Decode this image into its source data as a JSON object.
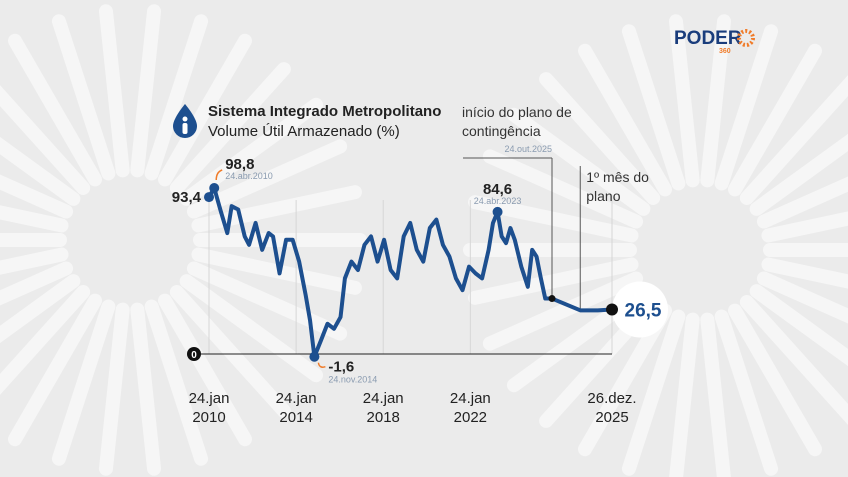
{
  "chart_data": {
    "type": "line",
    "title": "Sistema Integrado Metropolitano",
    "subtitle": "Volume Útil Armazenado (%)",
    "brand": {
      "name": "PODER",
      "number": "360"
    },
    "annotations": [
      {
        "text": "início do plano de contingência",
        "at": 58
      },
      {
        "text": "1º mês do plano",
        "at": 59
      }
    ],
    "xlim": [
      2010.06,
      2025.98
    ],
    "xticks": [
      {
        "value": 2010.06,
        "label": "24.jan 2010"
      },
      {
        "value": 2014.06,
        "label": "24.jan 2014"
      },
      {
        "value": 2018.06,
        "label": "24.jan 2018"
      },
      {
        "value": 2022.06,
        "label": "24.jan 2022"
      },
      {
        "value": 2025.98,
        "label": "26.dez. 2025"
      }
    ],
    "ylim": [
      -5,
      100
    ],
    "yticks": [
      0
    ],
    "series": [
      {
        "name": "Volume Útil Armazenado",
        "color": "#1d4f8f",
        "x": [
          2010.06,
          2010.3,
          2010.6,
          2010.9,
          2011.1,
          2011.4,
          2011.7,
          2011.9,
          2012.2,
          2012.5,
          2012.8,
          2013.0,
          2013.3,
          2013.6,
          2013.9,
          2014.2,
          2014.5,
          2014.7,
          2014.9,
          2015.2,
          2015.5,
          2015.8,
          2016.1,
          2016.3,
          2016.6,
          2016.9,
          2017.2,
          2017.5,
          2017.8,
          2018.1,
          2018.4,
          2018.7,
          2019.0,
          2019.3,
          2019.6,
          2019.9,
          2020.2,
          2020.5,
          2020.8,
          2021.1,
          2021.4,
          2021.7,
          2022.0,
          2022.3,
          2022.6,
          2022.9,
          2023.1,
          2023.31,
          2023.5,
          2023.7,
          2023.9,
          2024.1,
          2024.4,
          2024.7,
          2024.9,
          2025.1,
          2025.3,
          2025.5,
          2025.81,
          2025.89,
          2025.94,
          2025.98
        ],
        "values": [
          93.4,
          98.8,
          85,
          72,
          88,
          86,
          70,
          65,
          78,
          62,
          72,
          70,
          48,
          68,
          68,
          55,
          35,
          20,
          -1.6,
          8,
          18,
          15,
          22,
          45,
          55,
          50,
          65,
          70,
          55,
          68,
          50,
          45,
          70,
          78,
          62,
          55,
          75,
          80,
          65,
          58,
          45,
          38,
          52,
          48,
          45,
          62,
          78,
          84.6,
          70,
          66,
          75,
          68,
          52,
          40,
          62,
          58,
          45,
          33,
          33,
          26,
          26,
          26.5
        ],
        "value_labels": [
          "93,4",
          "98,8",
          null,
          null,
          null,
          null,
          null,
          null,
          null,
          null,
          null,
          null,
          null,
          null,
          null,
          null,
          null,
          null,
          "-1,6",
          null,
          null,
          null,
          null,
          null,
          null,
          null,
          null,
          null,
          null,
          null,
          null,
          null,
          null,
          null,
          null,
          null,
          null,
          null,
          null,
          null,
          null,
          null,
          null,
          null,
          null,
          null,
          null,
          "84,6",
          null,
          null,
          null,
          null,
          null,
          null,
          null,
          null,
          null,
          null,
          null,
          null,
          null,
          "26,5"
        ],
        "date_labels": [
          null,
          "24.abr.2010",
          null,
          null,
          null,
          null,
          null,
          null,
          null,
          null,
          null,
          null,
          null,
          null,
          null,
          null,
          null,
          null,
          "24.nov.2014",
          null,
          null,
          null,
          null,
          null,
          null,
          null,
          null,
          null,
          null,
          null,
          null,
          null,
          null,
          null,
          null,
          null,
          null,
          null,
          null,
          null,
          null,
          null,
          null,
          null,
          null,
          null,
          null,
          "24.abr.2023",
          null,
          null,
          null,
          null,
          null,
          null,
          null,
          null,
          null,
          null,
          "24.out.2025",
          null,
          null,
          null
        ]
      }
    ]
  }
}
